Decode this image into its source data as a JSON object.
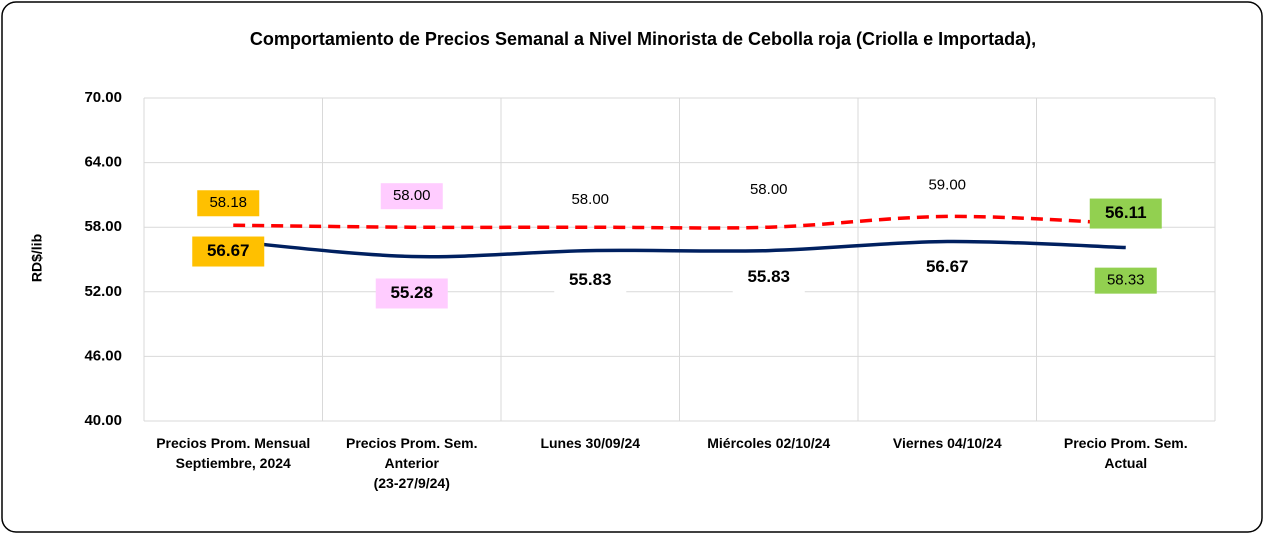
{
  "chart_data": {
    "type": "line",
    "title": "Comportamiento de Precios Semanal a Nivel Minorista de Cebolla roja (Criolla e Importada),",
    "y_label": "RD$/lib",
    "categories": [
      "Precios Prom. Mensual\nSeptiembre, 2024",
      "Precios Prom. Sem.\nAnterior\n(23-27/9/24)",
      "Lunes  30/09/24",
      "Miércoles 02/10/24",
      "Viernes 04/10/24",
      "Precio Prom. Sem.\nActual"
    ],
    "series": [
      {
        "name": null,
        "color": "#ff0000",
        "dashed": true,
        "values": [
          58.18,
          58.0,
          58.0,
          58.0,
          59.0,
          58.33
        ],
        "value_labels": [
          "58.18",
          "58.00",
          "58.00",
          "58.00",
          "59.00",
          "58.33"
        ]
      },
      {
        "name": null,
        "color": "#002060",
        "dashed": false,
        "values": [
          56.67,
          55.28,
          55.83,
          55.83,
          56.67,
          56.11
        ],
        "value_labels": [
          "56.67",
          "55.28",
          "55.83",
          "55.83",
          "56.67",
          "56.11"
        ]
      }
    ],
    "label_backgrounds": [
      "#ffc000",
      "#ffccff",
      "#ffffff",
      "#ffffff",
      "#ffffff",
      "#92d050"
    ],
    "ylim": [
      40,
      70
    ],
    "yticks": [
      {
        "value": 40,
        "label": "40.00"
      },
      {
        "value": 46,
        "label": "46.00"
      },
      {
        "value": 52,
        "label": "52.00"
      },
      {
        "value": 58,
        "label": "58.00"
      },
      {
        "value": 64,
        "label": "64.00"
      },
      {
        "value": 70,
        "label": "70.00"
      }
    ],
    "grid": true
  }
}
